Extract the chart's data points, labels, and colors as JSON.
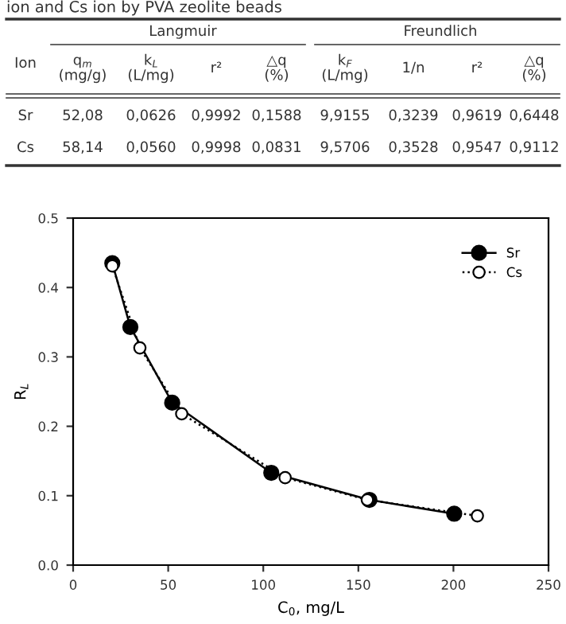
{
  "chart_data": [
    {
      "type": "other",
      "title": "ion and Cs ion by PVA zeolite beads",
      "annotations": [
        "Ion",
        "Langmuir",
        "Freundlich",
        "q$_{m}$\n(mg/g)",
        "k$_{L}$\n(L/mg)",
        "r²",
        "△q\n(%)",
        "k$_{F}$\n(L/mg)",
        "1/n",
        "r²",
        "△q\n(%)",
        "Sr",
        "52,08",
        "0,0626",
        "0,9992",
        "0,1588",
        "9,9155",
        "0,3239",
        "0,9619",
        "0,6448",
        "Cs",
        "58,14",
        "0,0560",
        "0,9998",
        "0,0831",
        "9,5706",
        "0,3528",
        "0,9547",
        "0,9112"
      ]
    },
    {
      "type": "line",
      "xlabel": "C$_{0}$, mg/L",
      "ylabel": "R$_{L}$",
      "series": [
        {
          "name": "Sr",
          "color": "#000000",
          "marker": "circle",
          "line_style": "solid",
          "x": [
            20.6,
            30.1,
            52.1,
            104.2,
            155.8,
            200.4
          ],
          "values": [
            0.435,
            0.343,
            0.234,
            0.133,
            0.094,
            0.074
          ]
        },
        {
          "name": "Cs",
          "color": "#000000",
          "marker": "circle",
          "line_style": "dotted",
          "x": [
            20.6,
            35.1,
            57.1,
            111.5,
            154.7,
            212.6
          ],
          "values": [
            0.431,
            0.313,
            0.218,
            0.126,
            0.094,
            0.071
          ]
        }
      ],
      "xlim": [
        0,
        250
      ],
      "xticks": [
        0,
        50,
        100,
        150,
        200,
        250
      ],
      "ylim": [
        0,
        0.5
      ],
      "yticks": [
        {
          "value": 0,
          "label": "0.0"
        },
        {
          "value": 0.1,
          "label": "0.1"
        },
        {
          "value": 0.2,
          "label": "0.2"
        },
        {
          "value": 0.3,
          "label": "0.3"
        },
        {
          "value": 0.4,
          "label": "0.4"
        },
        {
          "value": 0.5,
          "label": "0.5"
        }
      ],
      "legend": "top right",
      "grid": false
    }
  ]
}
